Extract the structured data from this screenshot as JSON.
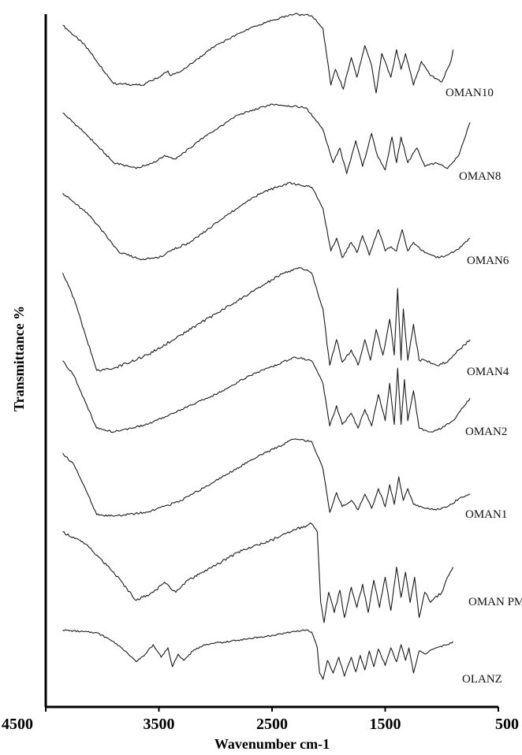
{
  "chart_data": {
    "type": "line",
    "title": "",
    "xlabel": "Wavenumber cm-1",
    "ylabel": "Transmittance    %",
    "xlim": [
      4500,
      500
    ],
    "x_reversed": true,
    "x_ticks": [
      4500,
      3500,
      2500,
      1500,
      500
    ],
    "x_tick_labels": [
      "4500",
      "3500",
      "2500",
      "1500",
      "500"
    ],
    "y_ticks_shown": false,
    "grid": false,
    "legend": "none; series labelled inline at right end of each trace",
    "stacked_offset_traces": true,
    "series": [
      {
        "name": "OMAN10",
        "xstart": 4350,
        "xend": 900,
        "points": [
          [
            4350,
            0.86
          ],
          [
            4150,
            0.6
          ],
          [
            3900,
            0.12
          ],
          [
            3650,
            0.1
          ],
          [
            3500,
            0.2
          ],
          [
            3420,
            0.28
          ],
          [
            3400,
            0.22
          ],
          [
            3300,
            0.28
          ],
          [
            3000,
            0.6
          ],
          [
            2700,
            0.82
          ],
          [
            2500,
            0.92
          ],
          [
            2300,
            1.0
          ],
          [
            2150,
            0.98
          ],
          [
            2050,
            0.82
          ],
          [
            1980,
            0.1
          ],
          [
            1940,
            0.3
          ],
          [
            1870,
            0.05
          ],
          [
            1800,
            0.45
          ],
          [
            1750,
            0.2
          ],
          [
            1680,
            0.6
          ],
          [
            1620,
            0.35
          ],
          [
            1580,
            0.0
          ],
          [
            1530,
            0.5
          ],
          [
            1450,
            0.2
          ],
          [
            1400,
            0.55
          ],
          [
            1360,
            0.3
          ],
          [
            1320,
            0.5
          ],
          [
            1250,
            0.1
          ],
          [
            1180,
            0.4
          ],
          [
            1100,
            0.22
          ],
          [
            1000,
            0.14
          ],
          [
            920,
            0.4
          ],
          [
            900,
            0.55
          ]
        ]
      },
      {
        "name": "OMAN8",
        "xstart": 4350,
        "xend": 750,
        "points": [
          [
            4350,
            0.88
          ],
          [
            4150,
            0.6
          ],
          [
            3900,
            0.2
          ],
          [
            3700,
            0.12
          ],
          [
            3520,
            0.22
          ],
          [
            3450,
            0.3
          ],
          [
            3350,
            0.25
          ],
          [
            3100,
            0.55
          ],
          [
            2800,
            0.85
          ],
          [
            2500,
            1.0
          ],
          [
            2200,
            0.95
          ],
          [
            2050,
            0.65
          ],
          [
            1960,
            0.2
          ],
          [
            1900,
            0.4
          ],
          [
            1840,
            0.05
          ],
          [
            1760,
            0.5
          ],
          [
            1700,
            0.15
          ],
          [
            1620,
            0.6
          ],
          [
            1570,
            0.3
          ],
          [
            1500,
            0.1
          ],
          [
            1440,
            0.55
          ],
          [
            1400,
            0.2
          ],
          [
            1360,
            0.55
          ],
          [
            1300,
            0.2
          ],
          [
            1220,
            0.4
          ],
          [
            1150,
            0.15
          ],
          [
            1050,
            0.2
          ],
          [
            950,
            0.12
          ],
          [
            850,
            0.3
          ],
          [
            750,
            0.75
          ]
        ]
      },
      {
        "name": "OMAN6",
        "xstart": 4350,
        "xend": 750,
        "points": [
          [
            4350,
            0.88
          ],
          [
            4100,
            0.6
          ],
          [
            3850,
            0.18
          ],
          [
            3650,
            0.1
          ],
          [
            3500,
            0.12
          ],
          [
            3400,
            0.2
          ],
          [
            3200,
            0.32
          ],
          [
            2900,
            0.62
          ],
          [
            2600,
            0.88
          ],
          [
            2350,
            1.0
          ],
          [
            2150,
            0.95
          ],
          [
            2050,
            0.7
          ],
          [
            1980,
            0.2
          ],
          [
            1930,
            0.35
          ],
          [
            1880,
            0.12
          ],
          [
            1800,
            0.3
          ],
          [
            1750,
            0.18
          ],
          [
            1700,
            0.38
          ],
          [
            1640,
            0.15
          ],
          [
            1560,
            0.45
          ],
          [
            1500,
            0.2
          ],
          [
            1450,
            0.25
          ],
          [
            1400,
            0.2
          ],
          [
            1350,
            0.45
          ],
          [
            1300,
            0.2
          ],
          [
            1250,
            0.3
          ],
          [
            1150,
            0.18
          ],
          [
            1050,
            0.12
          ],
          [
            950,
            0.15
          ],
          [
            850,
            0.22
          ],
          [
            750,
            0.35
          ]
        ]
      },
      {
        "name": "OMAN4",
        "xstart": 4350,
        "xend": 750,
        "points": [
          [
            4350,
            0.95
          ],
          [
            4250,
            0.7
          ],
          [
            4150,
            0.35
          ],
          [
            4050,
            0.0
          ],
          [
            3900,
            0.02
          ],
          [
            3600,
            0.15
          ],
          [
            3300,
            0.35
          ],
          [
            3000,
            0.55
          ],
          [
            2700,
            0.75
          ],
          [
            2400,
            0.95
          ],
          [
            2250,
            1.0
          ],
          [
            2150,
            0.95
          ],
          [
            2050,
            0.6
          ],
          [
            1990,
            0.05
          ],
          [
            1930,
            0.3
          ],
          [
            1880,
            0.08
          ],
          [
            1800,
            0.2
          ],
          [
            1740,
            0.05
          ],
          [
            1680,
            0.3
          ],
          [
            1630,
            0.1
          ],
          [
            1580,
            0.4
          ],
          [
            1520,
            0.15
          ],
          [
            1460,
            0.5
          ],
          [
            1420,
            0.15
          ],
          [
            1390,
            0.8
          ],
          [
            1360,
            0.1
          ],
          [
            1340,
            0.6
          ],
          [
            1300,
            0.1
          ],
          [
            1250,
            0.45
          ],
          [
            1200,
            0.1
          ],
          [
            1150,
            0.1
          ],
          [
            1050,
            0.05
          ],
          [
            950,
            0.08
          ],
          [
            850,
            0.2
          ],
          [
            750,
            0.3
          ]
        ]
      },
      {
        "name": "OMAN2",
        "xstart": 4350,
        "xend": 750,
        "points": [
          [
            4350,
            0.95
          ],
          [
            4250,
            0.75
          ],
          [
            4150,
            0.4
          ],
          [
            4050,
            0.05
          ],
          [
            3900,
            0.0
          ],
          [
            3600,
            0.1
          ],
          [
            3300,
            0.3
          ],
          [
            3000,
            0.5
          ],
          [
            2700,
            0.75
          ],
          [
            2450,
            0.9
          ],
          [
            2300,
            1.0
          ],
          [
            2150,
            0.95
          ],
          [
            2050,
            0.65
          ],
          [
            1990,
            0.08
          ],
          [
            1930,
            0.35
          ],
          [
            1880,
            0.1
          ],
          [
            1800,
            0.25
          ],
          [
            1740,
            0.05
          ],
          [
            1680,
            0.3
          ],
          [
            1620,
            0.08
          ],
          [
            1560,
            0.5
          ],
          [
            1500,
            0.15
          ],
          [
            1460,
            0.65
          ],
          [
            1420,
            0.1
          ],
          [
            1390,
            0.85
          ],
          [
            1360,
            0.1
          ],
          [
            1330,
            0.7
          ],
          [
            1300,
            0.15
          ],
          [
            1250,
            0.55
          ],
          [
            1200,
            0.05
          ],
          [
            1100,
            0.0
          ],
          [
            1000,
            0.05
          ],
          [
            900,
            0.15
          ],
          [
            800,
            0.35
          ],
          [
            750,
            0.45
          ]
        ]
      },
      {
        "name": "OMAN1",
        "xstart": 4350,
        "xend": 750,
        "points": [
          [
            4350,
            0.8
          ],
          [
            4250,
            0.65
          ],
          [
            4150,
            0.35
          ],
          [
            4050,
            0.02
          ],
          [
            3900,
            0.0
          ],
          [
            3600,
            0.05
          ],
          [
            3300,
            0.2
          ],
          [
            3000,
            0.45
          ],
          [
            2700,
            0.7
          ],
          [
            2450,
            0.88
          ],
          [
            2300,
            0.98
          ],
          [
            2150,
            0.95
          ],
          [
            2050,
            0.6
          ],
          [
            1990,
            0.05
          ],
          [
            1930,
            0.3
          ],
          [
            1880,
            0.12
          ],
          [
            1800,
            0.2
          ],
          [
            1740,
            0.08
          ],
          [
            1680,
            0.28
          ],
          [
            1620,
            0.1
          ],
          [
            1560,
            0.35
          ],
          [
            1500,
            0.12
          ],
          [
            1460,
            0.4
          ],
          [
            1420,
            0.15
          ],
          [
            1380,
            0.5
          ],
          [
            1340,
            0.2
          ],
          [
            1300,
            0.35
          ],
          [
            1250,
            0.15
          ],
          [
            1150,
            0.1
          ],
          [
            1050,
            0.08
          ],
          [
            950,
            0.12
          ],
          [
            850,
            0.22
          ],
          [
            750,
            0.28
          ]
        ]
      },
      {
        "name": "OMAN PM",
        "xstart": 4350,
        "xend": 900,
        "points": [
          [
            4350,
            0.9
          ],
          [
            4150,
            0.78
          ],
          [
            3900,
            0.5
          ],
          [
            3700,
            0.22
          ],
          [
            3550,
            0.3
          ],
          [
            3450,
            0.4
          ],
          [
            3350,
            0.3
          ],
          [
            3250,
            0.42
          ],
          [
            3100,
            0.5
          ],
          [
            2800,
            0.7
          ],
          [
            2500,
            0.82
          ],
          [
            2300,
            0.92
          ],
          [
            2150,
            0.98
          ],
          [
            2100,
            0.9
          ],
          [
            2070,
            0.2
          ],
          [
            2040,
            0.0
          ],
          [
            2000,
            0.3
          ],
          [
            1950,
            0.1
          ],
          [
            1900,
            0.32
          ],
          [
            1860,
            0.05
          ],
          [
            1800,
            0.35
          ],
          [
            1750,
            0.15
          ],
          [
            1700,
            0.38
          ],
          [
            1650,
            0.1
          ],
          [
            1600,
            0.42
          ],
          [
            1550,
            0.15
          ],
          [
            1500,
            0.45
          ],
          [
            1450,
            0.12
          ],
          [
            1400,
            0.55
          ],
          [
            1360,
            0.25
          ],
          [
            1320,
            0.5
          ],
          [
            1280,
            0.2
          ],
          [
            1240,
            0.45
          ],
          [
            1200,
            0.05
          ],
          [
            1150,
            0.3
          ],
          [
            1100,
            0.2
          ],
          [
            1000,
            0.3
          ],
          [
            950,
            0.45
          ],
          [
            900,
            0.55
          ]
        ]
      },
      {
        "name": "OLANZ",
        "xstart": 4350,
        "xend": 900,
        "points": [
          [
            4350,
            0.78
          ],
          [
            4050,
            0.74
          ],
          [
            3900,
            0.6
          ],
          [
            3800,
            0.45
          ],
          [
            3700,
            0.28
          ],
          [
            3620,
            0.4
          ],
          [
            3550,
            0.55
          ],
          [
            3480,
            0.35
          ],
          [
            3420,
            0.5
          ],
          [
            3380,
            0.2
          ],
          [
            3330,
            0.4
          ],
          [
            3280,
            0.3
          ],
          [
            3200,
            0.45
          ],
          [
            3100,
            0.55
          ],
          [
            2800,
            0.62
          ],
          [
            2500,
            0.7
          ],
          [
            2300,
            0.76
          ],
          [
            2200,
            0.78
          ],
          [
            2150,
            0.75
          ],
          [
            2100,
            0.5
          ],
          [
            2080,
            0.1
          ],
          [
            2050,
            0.0
          ],
          [
            2010,
            0.3
          ],
          [
            1960,
            0.1
          ],
          [
            1910,
            0.35
          ],
          [
            1860,
            0.05
          ],
          [
            1800,
            0.35
          ],
          [
            1760,
            0.12
          ],
          [
            1720,
            0.38
          ],
          [
            1680,
            0.15
          ],
          [
            1640,
            0.45
          ],
          [
            1600,
            0.2
          ],
          [
            1560,
            0.48
          ],
          [
            1500,
            0.22
          ],
          [
            1450,
            0.5
          ],
          [
            1400,
            0.28
          ],
          [
            1360,
            0.55
          ],
          [
            1320,
            0.3
          ],
          [
            1290,
            0.5
          ],
          [
            1250,
            0.1
          ],
          [
            1200,
            0.45
          ],
          [
            1150,
            0.4
          ],
          [
            1050,
            0.5
          ],
          [
            950,
            0.55
          ],
          [
            900,
            0.6
          ]
        ]
      }
    ]
  }
}
